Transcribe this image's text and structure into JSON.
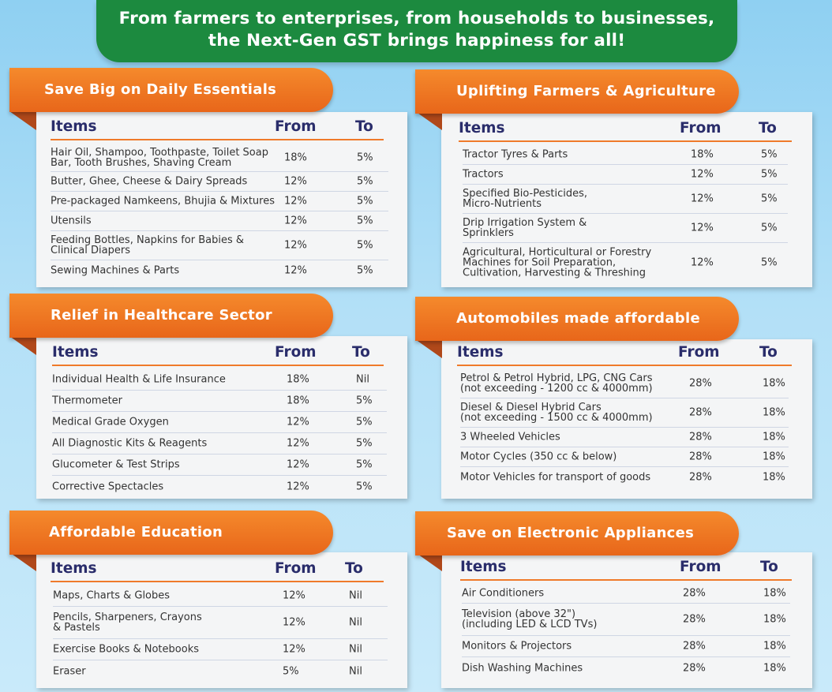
{
  "banner": {
    "line1": "From farmers to enterprises, from households to businesses,",
    "line2": "the Next-Gen GST brings happiness for all!"
  },
  "sections": {
    "essentials": {
      "title": "Save Big on Daily Essentials",
      "headers": {
        "items": "Items",
        "from": "From",
        "to": "To"
      },
      "rows": [
        {
          "item": "Hair Oil, Shampoo, Toothpaste, Toilet Soap\nBar, Tooth Brushes, Shaving Cream",
          "from": "18%",
          "to": "5%"
        },
        {
          "item": "Butter, Ghee, Cheese & Dairy Spreads",
          "from": "12%",
          "to": "5%"
        },
        {
          "item": "Pre-packaged Namkeens, Bhujia & Mixtures",
          "from": "12%",
          "to": "5%"
        },
        {
          "item": "Utensils",
          "from": "12%",
          "to": "5%"
        },
        {
          "item": "Feeding Bottles, Napkins for Babies &\nClinical Diapers",
          "from": "12%",
          "to": "5%"
        },
        {
          "item": "Sewing Machines & Parts",
          "from": "12%",
          "to": "5%"
        }
      ]
    },
    "farmers": {
      "title": "Uplifting Farmers & Agriculture",
      "headers": {
        "items": "Items",
        "from": "From",
        "to": "To"
      },
      "rows": [
        {
          "item": "Tractor Tyres & Parts",
          "from": "18%",
          "to": "5%"
        },
        {
          "item": "Tractors",
          "from": "12%",
          "to": "5%"
        },
        {
          "item": "Specified Bio-Pesticides,\nMicro-Nutrients",
          "from": "12%",
          "to": "5%"
        },
        {
          "item": "Drip Irrigation System &\nSprinklers",
          "from": "12%",
          "to": "5%"
        },
        {
          "item": "Agricultural, Horticultural or Forestry\nMachines for Soil Preparation,\nCultivation, Harvesting & Threshing",
          "from": "12%",
          "to": "5%"
        }
      ]
    },
    "healthcare": {
      "title": "Relief in Healthcare Sector",
      "headers": {
        "items": "Items",
        "from": "From",
        "to": "To"
      },
      "rows": [
        {
          "item": "Individual Health & Life Insurance",
          "from": "18%",
          "to": "Nil"
        },
        {
          "item": "Thermometer",
          "from": "18%",
          "to": "5%"
        },
        {
          "item": "Medical Grade Oxygen",
          "from": "12%",
          "to": "5%"
        },
        {
          "item": "All Diagnostic Kits & Reagents",
          "from": "12%",
          "to": "5%"
        },
        {
          "item": "Glucometer & Test Strips",
          "from": "12%",
          "to": "5%"
        },
        {
          "item": "Corrective Spectacles",
          "from": "12%",
          "to": "5%"
        }
      ]
    },
    "automobiles": {
      "title": "Automobiles made affordable",
      "headers": {
        "items": "Items",
        "from": "From",
        "to": "To"
      },
      "rows": [
        {
          "item": "Petrol & Petrol Hybrid, LPG, CNG Cars\n(not exceeding - 1200 cc & 4000mm)",
          "from": "28%",
          "to": "18%"
        },
        {
          "item": "Diesel & Diesel Hybrid Cars\n(not exceeding - 1500 cc & 4000mm)",
          "from": "28%",
          "to": "18%"
        },
        {
          "item": "3 Wheeled Vehicles",
          "from": "28%",
          "to": "18%"
        },
        {
          "item": "Motor Cycles (350 cc & below)",
          "from": "28%",
          "to": "18%"
        },
        {
          "item": "Motor Vehicles for transport of goods",
          "from": "28%",
          "to": "18%"
        }
      ]
    },
    "education": {
      "title": "Affordable Education",
      "headers": {
        "items": "Items",
        "from": "From",
        "to": "To"
      },
      "rows": [
        {
          "item": "Maps, Charts & Globes",
          "from": "12%",
          "to": "Nil"
        },
        {
          "item": "Pencils, Sharpeners, Crayons\n& Pastels",
          "from": "12%",
          "to": "Nil"
        },
        {
          "item": "Exercise Books & Notebooks",
          "from": "12%",
          "to": "Nil"
        },
        {
          "item": "Eraser",
          "from": "5%",
          "to": "Nil"
        }
      ]
    },
    "electronics": {
      "title": "Save on Electronic Appliances",
      "headers": {
        "items": "Items",
        "from": "From",
        "to": "To"
      },
      "rows": [
        {
          "item": "Air Conditioners",
          "from": "28%",
          "to": "18%"
        },
        {
          "item": "Television (above 32\")\n(including LED & LCD TVs)",
          "from": "28%",
          "to": "18%"
        },
        {
          "item": "Monitors & Projectors",
          "from": "28%",
          "to": "18%"
        },
        {
          "item": "Dish Washing Machines",
          "from": "28%",
          "to": "18%"
        }
      ]
    }
  },
  "colors": {
    "banner_green": "#1c8a3f",
    "ribbon_orange": "#ef7a2a",
    "header_navy": "#2a2d6b",
    "background_blue": "#a8dcf5"
  }
}
